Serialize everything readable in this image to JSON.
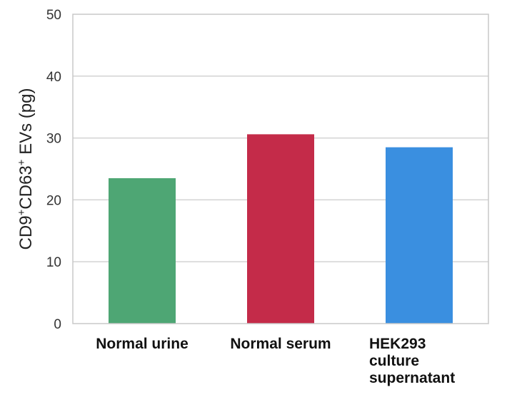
{
  "chart_data": {
    "type": "bar",
    "title": "",
    "xlabel": "",
    "ylabel_main": "CD9",
    "ylabel_sup1": "+",
    "ylabel_mid": "CD63",
    "ylabel_sup2": "+",
    "ylabel_tail": " EVs (pg)",
    "ylim": [
      0,
      50
    ],
    "yticks": [
      0,
      10,
      20,
      30,
      40,
      50
    ],
    "grid": true,
    "categories": [
      [
        "Normal urine"
      ],
      [
        "Normal serum"
      ],
      [
        "HEK293",
        "culture",
        "supernatant"
      ]
    ],
    "values": [
      23.5,
      30.6,
      28.5
    ],
    "colors": [
      "#4ea674",
      "#c42b49",
      "#3a8fe0"
    ]
  }
}
